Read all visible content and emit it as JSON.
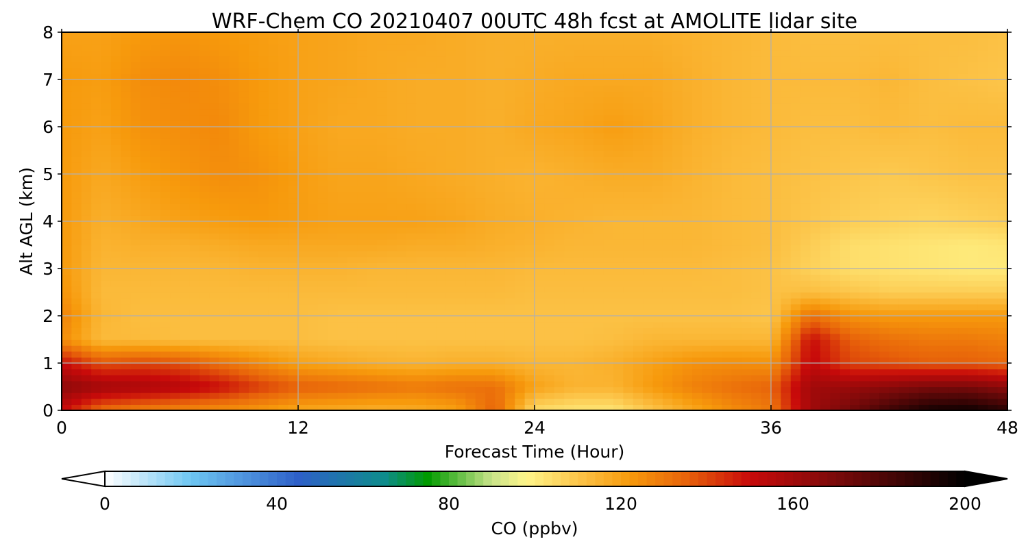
{
  "chart_data": {
    "type": "heatmap",
    "title": "WRF-Chem CO  20210407 00UTC 48h fcst at AMOLITE lidar site",
    "xlabel": "Forecast Time (Hour)",
    "ylabel": "Alt AGL (km)",
    "xlim": [
      0,
      48
    ],
    "ylim": [
      0,
      8
    ],
    "x_ticks": [
      "0",
      "12",
      "24",
      "36",
      "48"
    ],
    "y_ticks": [
      "0",
      "1",
      "2",
      "3",
      "4",
      "5",
      "6",
      "7",
      "8"
    ],
    "grid": true,
    "x": [
      0,
      2,
      4,
      6,
      8,
      10,
      12,
      14,
      16,
      18,
      20,
      22,
      24,
      26,
      28,
      30,
      32,
      34,
      36,
      38,
      40,
      42,
      44,
      46,
      48
    ],
    "y": [
      0,
      0.5,
      1,
      1.5,
      2,
      2.5,
      3,
      3.5,
      4,
      5,
      6,
      7,
      8
    ],
    "values": [
      [
        150,
        132,
        128,
        126,
        124,
        122,
        118,
        117,
        116,
        117,
        120,
        135,
        104,
        102,
        102,
        110,
        118,
        125,
        130,
        160,
        172,
        185,
        195,
        197,
        190
      ],
      [
        165,
        160,
        158,
        155,
        150,
        142,
        136,
        134,
        132,
        130,
        132,
        132,
        120,
        115,
        115,
        122,
        128,
        132,
        135,
        160,
        162,
        166,
        170,
        170,
        165
      ],
      [
        150,
        138,
        140,
        138,
        132,
        126,
        120,
        118,
        116,
        115,
        116,
        116,
        114,
        114,
        116,
        120,
        124,
        125,
        124,
        152,
        140,
        138,
        136,
        136,
        134
      ],
      [
        125,
        113,
        113,
        112,
        112,
        112,
        112,
        111,
        111,
        111,
        111,
        111,
        111,
        111,
        112,
        114,
        114,
        114,
        114,
        150,
        136,
        132,
        130,
        130,
        128
      ],
      [
        128,
        114,
        112,
        112,
        112,
        112,
        112,
        111,
        111,
        111,
        111,
        111,
        111,
        111,
        111,
        111,
        111,
        111,
        110,
        132,
        124,
        122,
        122,
        122,
        122
      ],
      [
        124,
        113,
        113,
        113,
        113,
        113,
        113,
        113,
        113,
        113,
        113,
        113,
        112,
        112,
        112,
        112,
        112,
        112,
        111,
        112,
        110,
        108,
        108,
        108,
        108
      ],
      [
        122,
        114,
        114,
        114,
        114,
        115,
        115,
        115,
        114,
        114,
        114,
        114,
        113,
        113,
        113,
        113,
        113,
        112,
        111,
        107,
        104,
        103,
        102,
        101,
        101
      ],
      [
        122,
        115,
        116,
        116,
        117,
        118,
        118,
        118,
        118,
        117,
        117,
        116,
        115,
        114,
        114,
        114,
        114,
        113,
        112,
        108,
        104,
        103,
        102,
        101,
        102
      ],
      [
        122,
        116,
        118,
        120,
        121,
        122,
        121,
        120,
        120,
        120,
        119,
        117,
        116,
        115,
        114,
        114,
        114,
        113,
        112,
        110,
        108,
        107,
        106,
        107,
        108
      ],
      [
        122,
        118,
        121,
        123,
        125,
        124,
        121,
        119,
        119,
        118,
        117,
        116,
        115,
        116,
        117,
        117,
        115,
        113,
        112,
        111,
        110,
        109,
        110,
        111,
        111
      ],
      [
        122,
        120,
        124,
        125,
        126,
        122,
        120,
        118,
        118,
        117,
        117,
        116,
        118,
        119,
        121,
        119,
        116,
        114,
        113,
        112,
        112,
        113,
        112,
        113,
        113
      ],
      [
        122,
        121,
        125,
        126,
        125,
        122,
        120,
        119,
        118,
        117,
        117,
        116,
        117,
        118,
        118,
        118,
        116,
        114,
        113,
        113,
        113,
        114,
        112,
        111,
        110
      ],
      [
        120,
        120,
        122,
        123,
        122,
        121,
        120,
        119,
        118,
        118,
        117,
        116,
        116,
        116,
        116,
        116,
        115,
        114,
        113,
        112,
        112,
        112,
        112,
        112,
        111
      ]
    ],
    "colorbar": {
      "label": "CO  (ppbv)",
      "min": 0,
      "max": 200,
      "ticks": [
        "0",
        "40",
        "80",
        "120",
        "160",
        "200"
      ],
      "extend": "both",
      "stops": [
        {
          "v": 0,
          "c": "#ffffff"
        },
        {
          "v": 20,
          "c": "#6ec6f2"
        },
        {
          "v": 45,
          "c": "#2e60c8"
        },
        {
          "v": 65,
          "c": "#0e8c8c"
        },
        {
          "v": 75,
          "c": "#009a00"
        },
        {
          "v": 90,
          "c": "#c9e48a"
        },
        {
          "v": 98,
          "c": "#fff58a"
        },
        {
          "v": 110,
          "c": "#fcc54a"
        },
        {
          "v": 122,
          "c": "#f79a0c"
        },
        {
          "v": 135,
          "c": "#e8640a"
        },
        {
          "v": 150,
          "c": "#c80a0a"
        },
        {
          "v": 170,
          "c": "#7a0a0a"
        },
        {
          "v": 200,
          "c": "#000000"
        }
      ]
    }
  }
}
